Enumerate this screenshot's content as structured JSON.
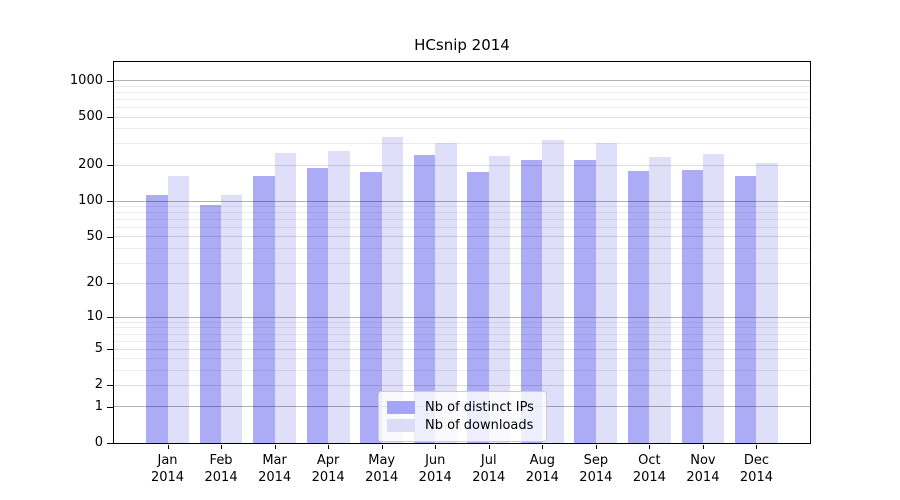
{
  "chart_data": {
    "type": "bar",
    "title": "HCsnip 2014",
    "categories": [
      "Jan",
      "Feb",
      "Mar",
      "Apr",
      "May",
      "Jun",
      "Jul",
      "Aug",
      "Sep",
      "Oct",
      "Nov",
      "Dec"
    ],
    "year_label": "2014",
    "series": [
      {
        "name": "Nb of distinct IPs",
        "color": "#a5a5f5",
        "values": [
          113,
          92,
          161,
          188,
          175,
          243,
          174,
          222,
          220,
          177,
          183,
          162
        ]
      },
      {
        "name": "Nb of downloads",
        "color": "#dcdcf9",
        "values": [
          161,
          112,
          251,
          261,
          345,
          304,
          236,
          326,
          303,
          233,
          248,
          210
        ]
      }
    ],
    "yscale": "log1p",
    "ylim": [
      0,
      1000
    ],
    "y_ticks": [
      0,
      1,
      2,
      5,
      10,
      20,
      50,
      100,
      200,
      500,
      1000
    ],
    "grid": true,
    "legend_position": "lower center",
    "axis_color": "#000000",
    "background": "#ffffff"
  }
}
